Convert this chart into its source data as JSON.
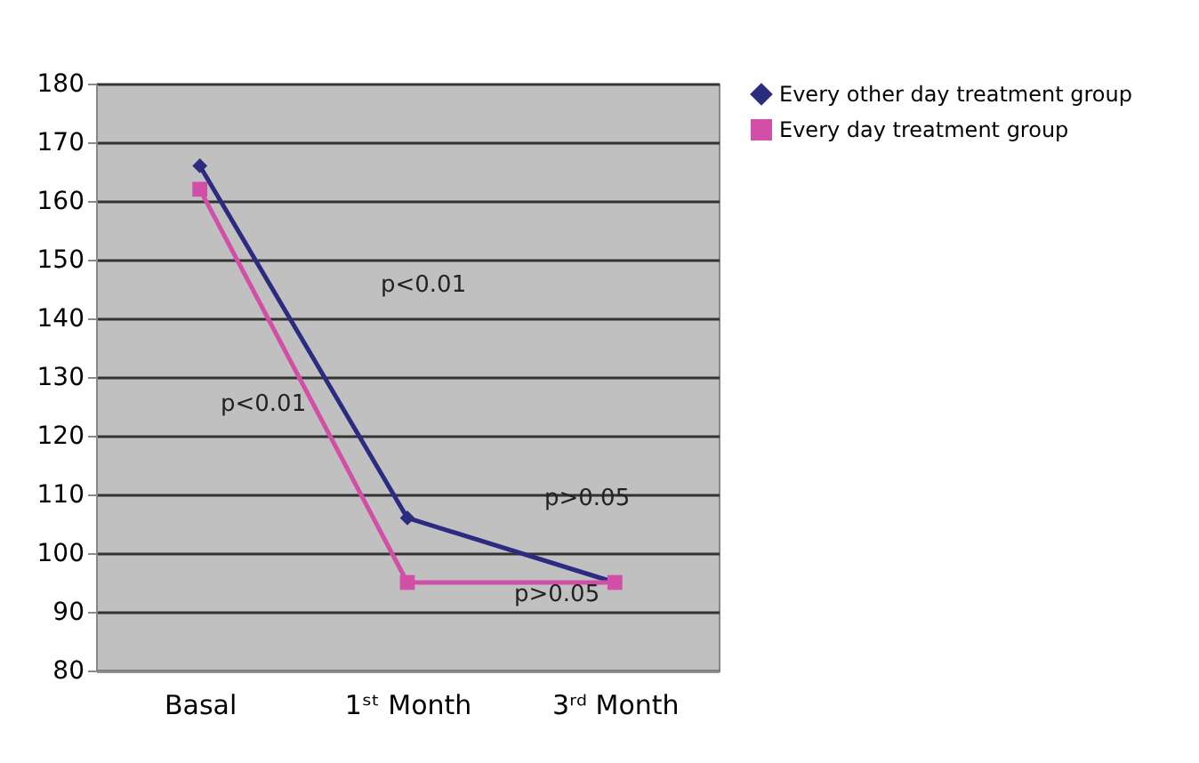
{
  "chart_data": {
    "type": "line",
    "categories": [
      "Basal",
      "1ˢᵗ Month",
      "3ʳᵈ Month"
    ],
    "series": [
      {
        "name": "Every other day treatment group",
        "color": "#2b2b80",
        "marker": "diamond",
        "values": [
          166,
          106,
          95
        ]
      },
      {
        "name": "Every day treatment group",
        "color": "#d24fa8",
        "marker": "square",
        "values": [
          162,
          95,
          95
        ]
      }
    ],
    "ylim": [
      80,
      180
    ],
    "yticks": [
      80,
      90,
      100,
      110,
      120,
      130,
      140,
      150,
      160,
      170,
      180
    ],
    "grid": "y",
    "legend": "right",
    "annotations": [
      "p<0.01",
      "p<0.01",
      "p>0.05",
      "p>0.05"
    ]
  }
}
